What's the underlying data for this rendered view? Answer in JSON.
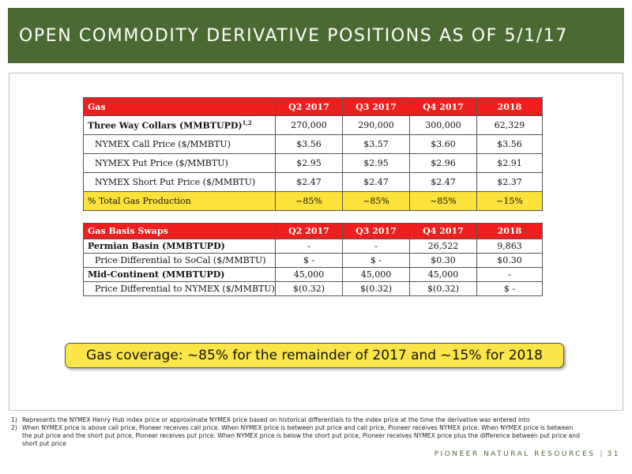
{
  "title": "OPEN COMMODITY DERIVATIVE POSITIONS AS OF 5/1/17",
  "gas_table": {
    "headers": [
      "Gas",
      "Q2 2017",
      "Q3 2017",
      "Q4 2017",
      "2018"
    ],
    "collars_label": "Three Way Collars (MMBTUPD)",
    "collars_sup": "1,2",
    "collars_values": [
      "270,000",
      "290,000",
      "300,000",
      "62,329"
    ],
    "call_label": "NYMEX Call Price ($/MMBTU)",
    "call_values": [
      "$3.56",
      "$3.57",
      "$3.60",
      "$3.56"
    ],
    "put_label": "NYMEX Put Price ($/MMBTU)",
    "put_values": [
      "$2.95",
      "$2.95",
      "$2.96",
      "$2.91"
    ],
    "short_label": "NYMEX Short Put Price ($/MMBTU)",
    "short_values": [
      "$2.47",
      "$2.47",
      "$2.47",
      "$2.37"
    ],
    "pct_label": "% Total Gas Production",
    "pct_values": [
      "~85%",
      "~85%",
      "~85%",
      "~15%"
    ],
    "highlight_color": "#fce23a",
    "header_color": "#ef1f1f"
  },
  "basis_table": {
    "headers": [
      "Gas Basis Swaps",
      "Q2 2017",
      "Q3 2017",
      "Q4 2017",
      "2018"
    ],
    "permian_label": "Permian Basin (MMBTUPD)",
    "permian_values": [
      "-",
      "-",
      "26,522",
      "9,863"
    ],
    "socal_label": "Price Differential to SoCal ($/MMBTU)",
    "socal_values": [
      "$ -",
      "$ -",
      "$0.30",
      "$0.30"
    ],
    "midcon_label": "Mid-Continent (MMBTUPD)",
    "midcon_values": [
      "45,000",
      "45,000",
      "45,000",
      "-"
    ],
    "nymex_label": "Price Differential to NYMEX ($/MMBTU)",
    "nymex_values": [
      "$(0.32)",
      "$(0.32)",
      "$(0.32)",
      "$ -"
    ]
  },
  "callout": "Gas coverage: ~85% for the remainder of 2017 and ~15% for 2018",
  "footnotes": [
    {
      "num": "1)",
      "text": "Represents the NYMEX Henry Hub index price or approximate NYMEX price based on historical differentials to the index price at the time the derivative was entered into"
    },
    {
      "num": "2)",
      "text": "When NYMEX price is above call price, Pioneer receives call price.  When NYMEX price is between put price and call price, Pioneer receives NYMEX price.  When NYMEX price is between the put price and the short put price, Pioneer receives put price.  When NYMEX price is below the short put price, Pioneer receives NYMEX price plus the difference between put price and short put price"
    }
  ],
  "footer": {
    "brand": "PIONEER NATURAL RESOURCES",
    "separator": "|",
    "page": "31"
  },
  "colors": {
    "header_bg": "#4a6a34",
    "brand": "#4a6a34"
  }
}
